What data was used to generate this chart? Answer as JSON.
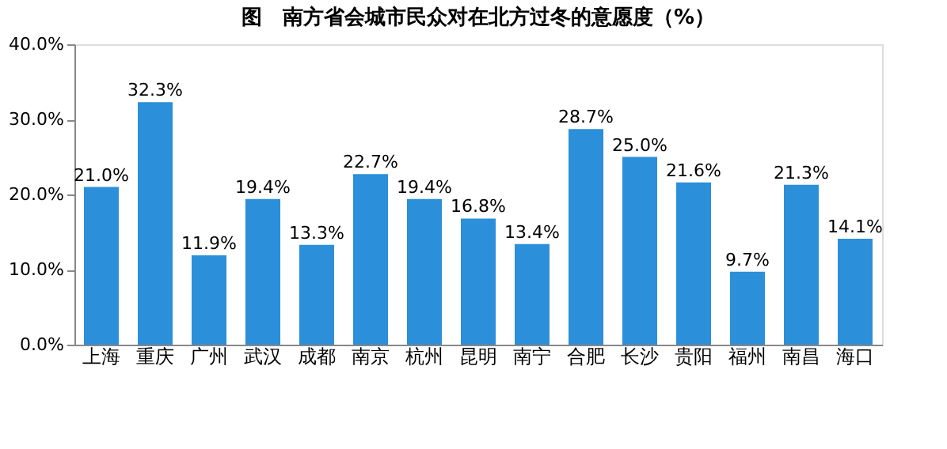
{
  "chart_data": {
    "type": "bar",
    "title": "图　南方省会城市民众对在北方过冬的意愿度（%）",
    "categories": [
      "上海",
      "重庆",
      "广州",
      "武汉",
      "成都",
      "南京",
      "杭州",
      "昆明",
      "南宁",
      "合肥",
      "长沙",
      "贵阳",
      "福州",
      "南昌",
      "海口"
    ],
    "values": [
      21.0,
      32.3,
      11.9,
      19.4,
      13.3,
      22.7,
      19.4,
      16.8,
      13.4,
      28.7,
      25.0,
      21.6,
      9.7,
      21.3,
      14.1
    ],
    "value_labels": [
      "21.0%",
      "32.3%",
      "11.9%",
      "19.4%",
      "13.3%",
      "22.7%",
      "19.4%",
      "16.8%",
      "13.4%",
      "28.7%",
      "25.0%",
      "21.6%",
      "9.7%",
      "21.3%",
      "14.1%"
    ],
    "color": "#2b8fd9",
    "ylim": [
      0,
      40
    ],
    "yticks": [
      {
        "value": 0,
        "label": "0.0%"
      },
      {
        "value": 10,
        "label": "10.0%"
      },
      {
        "value": 20,
        "label": "20.0%"
      },
      {
        "value": 30,
        "label": "30.0%"
      },
      {
        "value": 40,
        "label": "40.0%"
      }
    ],
    "grid": false
  }
}
